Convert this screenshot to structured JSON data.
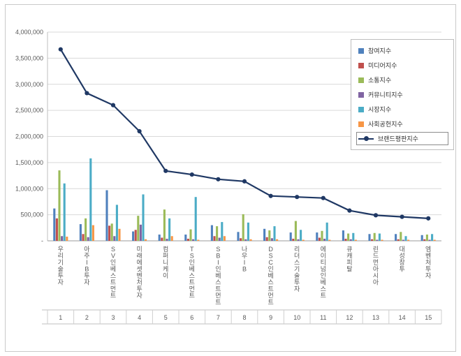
{
  "page": {
    "background": "#ffffff",
    "frame_border_color": "#c9c9c9"
  },
  "chart_data": {
    "type": "bar",
    "subtype": "grouped-bars-with-line-overlay",
    "title": "",
    "categories": [
      "우리기술투자",
      "아주IB투자",
      "SV인베스트먼트",
      "미래에셋벤처투자",
      "컴퍼니케이",
      "TS인베스트먼트",
      "SBI인베스트먼트",
      "나우IB",
      "DSC인베스트먼트",
      "리더스기술투자",
      "에이티넘인베스트",
      "큐캐피탈",
      "린드먼아시아",
      "대성창투",
      "엠벤처투자"
    ],
    "category_numbers": [
      "1",
      "2",
      "3",
      "4",
      "5",
      "6",
      "7",
      "8",
      "9",
      "10",
      "11",
      "12",
      "13",
      "14",
      "15"
    ],
    "series": [
      {
        "name": "참여지수",
        "render": "bar",
        "color": "#4F81BD",
        "values": [
          620000,
          320000,
          970000,
          180000,
          120000,
          120000,
          300000,
          170000,
          230000,
          160000,
          160000,
          200000,
          130000,
          130000,
          110000
        ]
      },
      {
        "name": "미디어지수",
        "render": "bar",
        "color": "#C0504D",
        "values": [
          430000,
          130000,
          290000,
          210000,
          60000,
          40000,
          90000,
          50000,
          70000,
          40000,
          60000,
          40000,
          30000,
          30000,
          30000
        ]
      },
      {
        "name": "소통지수",
        "render": "bar",
        "color": "#9BBB59",
        "values": [
          1350000,
          430000,
          330000,
          480000,
          600000,
          220000,
          280000,
          510000,
          200000,
          380000,
          190000,
          140000,
          150000,
          170000,
          120000
        ]
      },
      {
        "name": "커뮤니티지수",
        "render": "bar",
        "color": "#8064A2",
        "values": [
          90000,
          70000,
          90000,
          310000,
          40000,
          30000,
          60000,
          30000,
          50000,
          30000,
          40000,
          30000,
          20000,
          20000,
          20000
        ]
      },
      {
        "name": "시장지수",
        "render": "bar",
        "color": "#4BACC6",
        "values": [
          1100000,
          1580000,
          690000,
          890000,
          430000,
          840000,
          360000,
          350000,
          280000,
          210000,
          350000,
          150000,
          140000,
          90000,
          130000
        ]
      },
      {
        "name": "사회공헌지수",
        "render": "bar",
        "color": "#F79646",
        "values": [
          80000,
          300000,
          230000,
          30000,
          90000,
          20000,
          90000,
          30000,
          30000,
          20000,
          20000,
          20000,
          20000,
          20000,
          20000
        ]
      },
      {
        "name": "브랜드평판지수",
        "render": "line",
        "color": "#1F3864",
        "values": [
          3670000,
          2830000,
          2600000,
          2100000,
          1340000,
          1270000,
          1180000,
          1140000,
          860000,
          840000,
          820000,
          580000,
          490000,
          460000,
          430000
        ]
      }
    ],
    "y_axis": {
      "min": 0,
      "max": 4000000,
      "step": 500000,
      "tick_labels": [
        "-",
        "500,000",
        "1,000,000",
        "1,500,000",
        "2,000,000",
        "2,500,000",
        "3,000,000",
        "3,500,000",
        "4,000,000"
      ]
    },
    "legend_position": "right",
    "legend_selected": "브랜드평판지수",
    "grid": true,
    "grid_color": "#d9d9d9",
    "axis_color": "#9b9b9b",
    "tick_text_color": "#595959"
  }
}
